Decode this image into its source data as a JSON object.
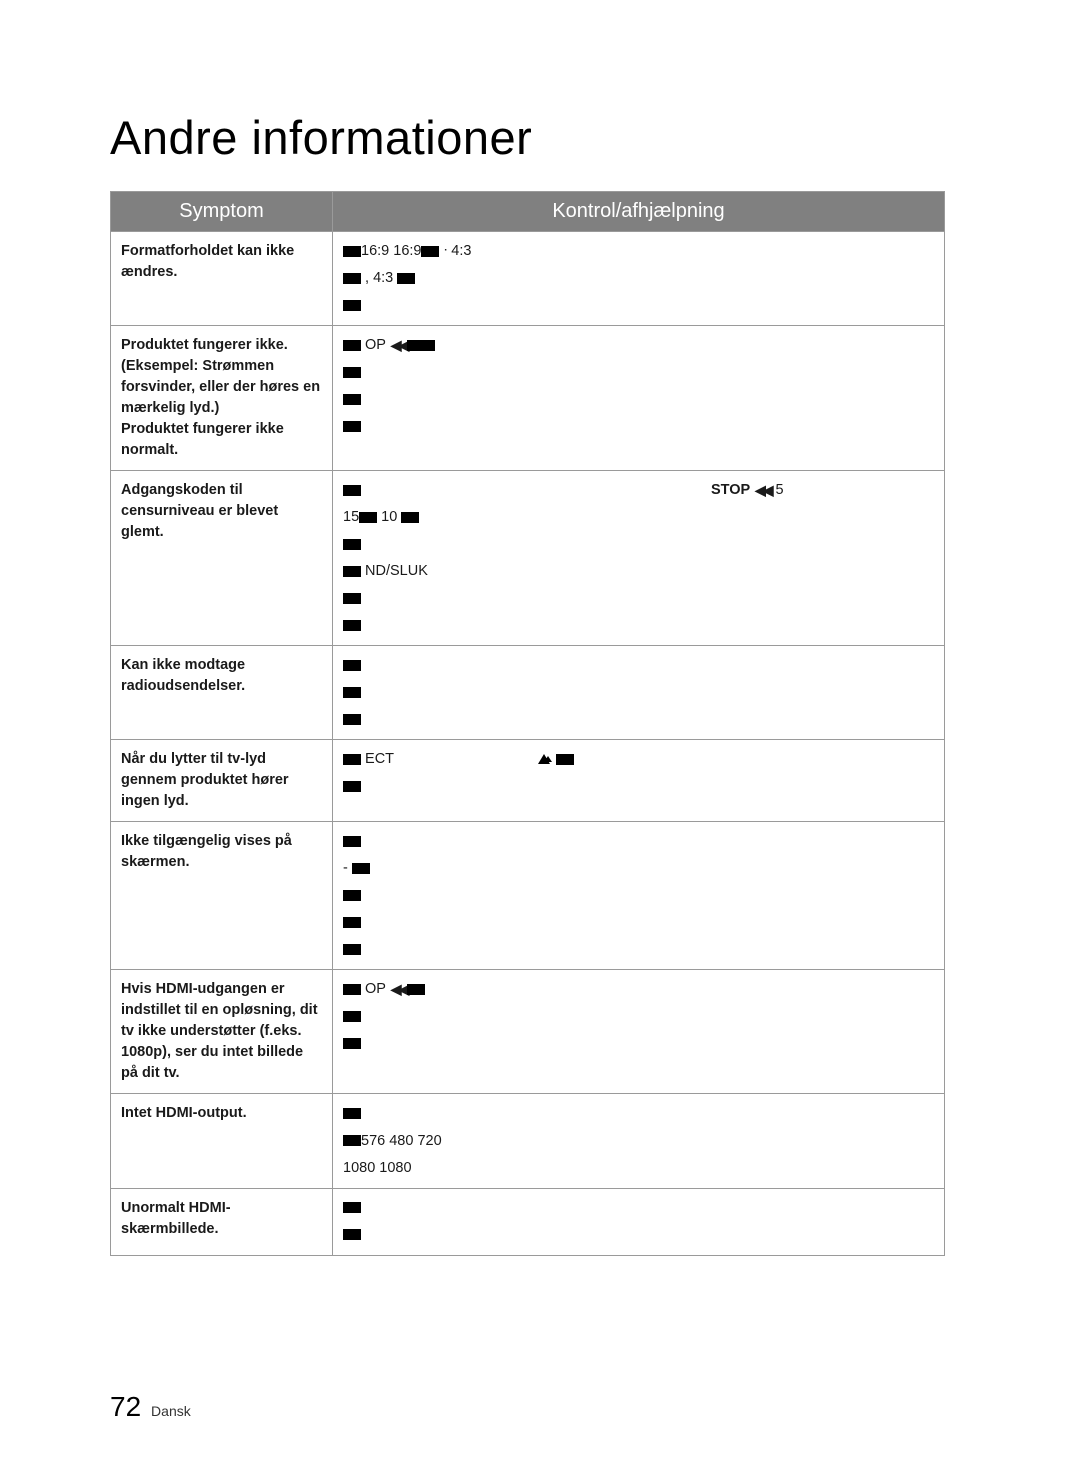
{
  "page": {
    "title": "Andre informationer",
    "number": "72",
    "language": "Dansk"
  },
  "table": {
    "headers": {
      "symptom": "Symptom",
      "fix": "Kontrol/afhjælpning"
    },
    "rows": [
      {
        "symptom_html": "Formatforholdet kan ikke ændres.",
        "fix_lines": [
          {
            "type": "frag",
            "parts": [
              {
                "t": "blk",
                "w": "sm"
              },
              {
                "t": "txt",
                "v": "16:9"
              },
              {
                "t": "txt",
                "v": " 16:9"
              },
              {
                "t": "blk",
                "w": "sm"
              },
              {
                "t": "txt",
                "v": " ᐧ 4:3"
              }
            ]
          },
          {
            "type": "frag",
            "parts": [
              {
                "t": "blk",
                "w": "sm"
              },
              {
                "t": "txt",
                "v": " , 4:3 "
              },
              {
                "t": "blk",
                "w": "sm"
              }
            ]
          },
          {
            "type": "frag",
            "parts": [
              {
                "t": "blk",
                "w": "sm"
              }
            ]
          }
        ]
      },
      {
        "symptom_html": "Produktet fungerer ikke.<br>(Eksempel: Strømmen forsvinder, eller der høres en mærkelig lyd.)<br>Produktet fungerer ikke normalt.",
        "fix_lines": [
          {
            "type": "frag",
            "parts": [
              {
                "t": "blk",
                "w": "sm"
              },
              {
                "t": "txt",
                "v": " OP "
              },
              {
                "t": "rewind"
              },
              {
                "t": "blk",
                "w": "md"
              }
            ]
          },
          {
            "type": "frag",
            "parts": [
              {
                "t": "txt",
                "v": " "
              },
              {
                "t": "blk",
                "w": "sm"
              }
            ]
          },
          {
            "type": "frag",
            "parts": [
              {
                "t": "blk",
                "w": "sm"
              },
              {
                "t": "txt",
                "v": " "
              }
            ]
          },
          {
            "type": "frag",
            "parts": [
              {
                "t": "blk",
                "w": "sm"
              }
            ]
          }
        ]
      },
      {
        "symptom_html": "Adgangskoden til censurniveau er blevet glemt.",
        "fix_lines": [
          {
            "type": "frag",
            "parts": [
              {
                "t": "blk",
                "w": "sm"
              },
              {
                "t": "spacer",
                "v": "350"
              },
              {
                "t": "stop",
                "v": "STOP "
              },
              {
                "t": "rewind"
              },
              {
                "t": "txt",
                "v": " 5"
              }
            ]
          },
          {
            "type": "frag",
            "parts": [
              {
                "t": "txt",
                "v": "15"
              },
              {
                "t": "blk",
                "w": "sm"
              },
              {
                "t": "txt",
                "v": " 10 "
              },
              {
                "t": "blk",
                "w": "sm"
              }
            ]
          },
          {
            "type": "frag",
            "parts": [
              {
                "t": "blk",
                "w": "sm"
              }
            ]
          },
          {
            "type": "frag",
            "parts": [
              {
                "t": "blk",
                "w": "sm"
              },
              {
                "t": "txt",
                "v": "  ND/SLUK "
              }
            ]
          },
          {
            "type": "frag",
            "parts": [
              {
                "t": "blk",
                "w": "sm"
              },
              {
                "t": "txt",
                "v": " "
              }
            ]
          },
          {
            "type": "frag",
            "parts": [
              {
                "t": "blk",
                "w": "sm"
              }
            ]
          }
        ]
      },
      {
        "symptom_html": "Kan ikke modtage radioudsendelser.",
        "fix_lines": [
          {
            "type": "frag",
            "parts": [
              {
                "t": "blk",
                "w": "sm"
              }
            ]
          },
          {
            "type": "frag",
            "parts": [
              {
                "t": "blk",
                "w": "sm"
              },
              {
                "t": "txt",
                "v": " "
              }
            ]
          },
          {
            "type": "frag",
            "parts": [
              {
                "t": "blk",
                "w": "sm"
              }
            ]
          }
        ]
      },
      {
        "symptom_html": "Når du lytter til tv-lyd gennem produktet hører ingen lyd.",
        "fix_lines": [
          {
            "type": "frag",
            "parts": [
              {
                "t": "txt",
                "v": "  "
              },
              {
                "t": "blk",
                "w": "sm"
              },
              {
                "t": "txt",
                "v": " ECT "
              },
              {
                "t": "spacer",
                "v": "140"
              },
              {
                "t": "tri"
              },
              {
                "t": "blk",
                "w": "sm"
              }
            ]
          },
          {
            "type": "frag",
            "parts": [
              {
                "t": "blk",
                "w": "sm"
              }
            ]
          }
        ]
      },
      {
        "symptom_html": "Ikke tilgængelig  vises på skærmen.",
        "fix_lines": [
          {
            "type": "frag",
            "parts": [
              {
                "t": "blk",
                "w": "sm"
              }
            ]
          },
          {
            "type": "frag",
            "parts": [
              {
                "t": "txt",
                "v": " - "
              },
              {
                "t": "blk",
                "w": "sm"
              }
            ]
          },
          {
            "type": "frag",
            "parts": [
              {
                "t": "blk",
                "w": "sm"
              }
            ]
          },
          {
            "type": "frag",
            "parts": [
              {
                "t": "blk",
                "w": "sm"
              }
            ]
          },
          {
            "type": "frag",
            "parts": [
              {
                "t": "blk",
                "w": "sm"
              }
            ]
          }
        ]
      },
      {
        "symptom_html": "Hvis HDMI-udgangen er indstillet til en opløsning, dit tv ikke understøtter (f.eks. 1080p), ser du intet billede på dit tv.",
        "fix_lines": [
          {
            "type": "frag",
            "parts": [
              {
                "t": "blk",
                "w": "sm"
              },
              {
                "t": "txt",
                "v": " OP "
              },
              {
                "t": "rewind"
              },
              {
                "t": "blk",
                "w": "sm"
              }
            ]
          },
          {
            "type": "frag",
            "parts": [
              {
                "t": "blk",
                "w": "sm"
              }
            ]
          },
          {
            "type": "frag",
            "parts": [
              {
                "t": "txt",
                "v": " "
              },
              {
                "t": "blk",
                "w": "sm"
              }
            ]
          }
        ]
      },
      {
        "symptom_html": "Intet HDMI-output.",
        "fix_lines": [
          {
            "type": "frag",
            "parts": [
              {
                "t": "blk",
                "w": "sm"
              }
            ]
          },
          {
            "type": "frag",
            "parts": [
              {
                "t": "blk",
                "w": "sm"
              },
              {
                "t": "txt",
                "v": "576 480  720  "
              }
            ]
          },
          {
            "type": "frag",
            "parts": [
              {
                "t": "txt",
                "v": "1080  1080 "
              }
            ]
          }
        ]
      },
      {
        "symptom_html": "Unormalt HDMI-skærmbillede.",
        "fix_lines": [
          {
            "type": "frag",
            "parts": [
              {
                "t": "blk",
                "w": "sm"
              },
              {
                "t": "txt",
                "v": " "
              }
            ]
          },
          {
            "type": "frag",
            "parts": [
              {
                "t": "blk",
                "w": "sm"
              }
            ]
          }
        ]
      }
    ]
  }
}
